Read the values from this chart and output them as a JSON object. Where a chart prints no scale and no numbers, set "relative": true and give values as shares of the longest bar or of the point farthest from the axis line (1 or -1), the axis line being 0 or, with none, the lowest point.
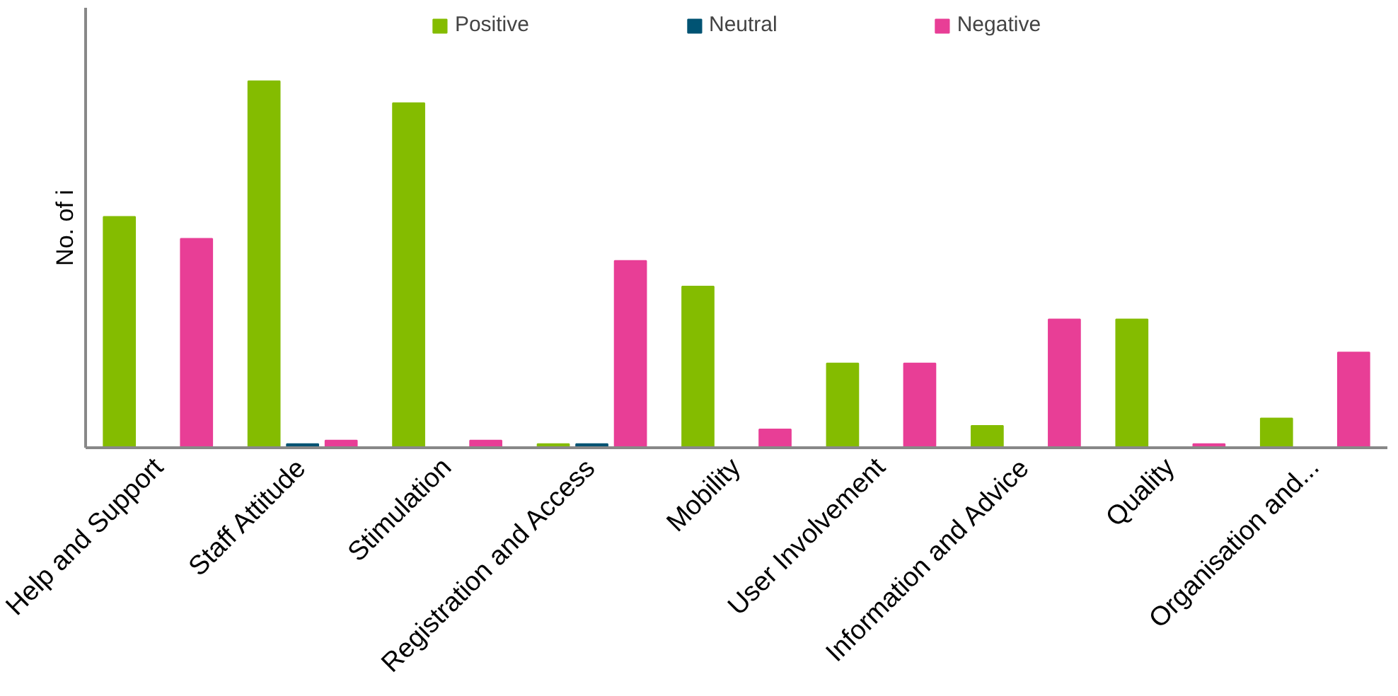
{
  "chart_data": {
    "type": "bar",
    "relative": true,
    "ylabel": "No. of i",
    "categories": [
      "Help and Support",
      "Staff Attitude",
      "Stimulation",
      "Registration and Access",
      "Mobility",
      "User Involvement",
      "Information and Advice",
      "Quality",
      "Organisation and..."
    ],
    "series": [
      {
        "name": "Positive",
        "color": "#84bc00",
        "values": [
          0.63,
          1,
          0.94,
          0.01,
          0.44,
          0.23,
          0.06,
          0.35,
          0.08
        ]
      },
      {
        "name": "Neutral",
        "color": "#005373",
        "values": [
          null,
          0.01,
          null,
          0.01,
          null,
          null,
          null,
          null,
          null
        ]
      },
      {
        "name": "Negative",
        "color": "#e83e96",
        "values": [
          0.57,
          0.02,
          0.02,
          0.51,
          0.05,
          0.23,
          0.35,
          0.01,
          0.26
        ]
      }
    ],
    "legend": "top"
  }
}
